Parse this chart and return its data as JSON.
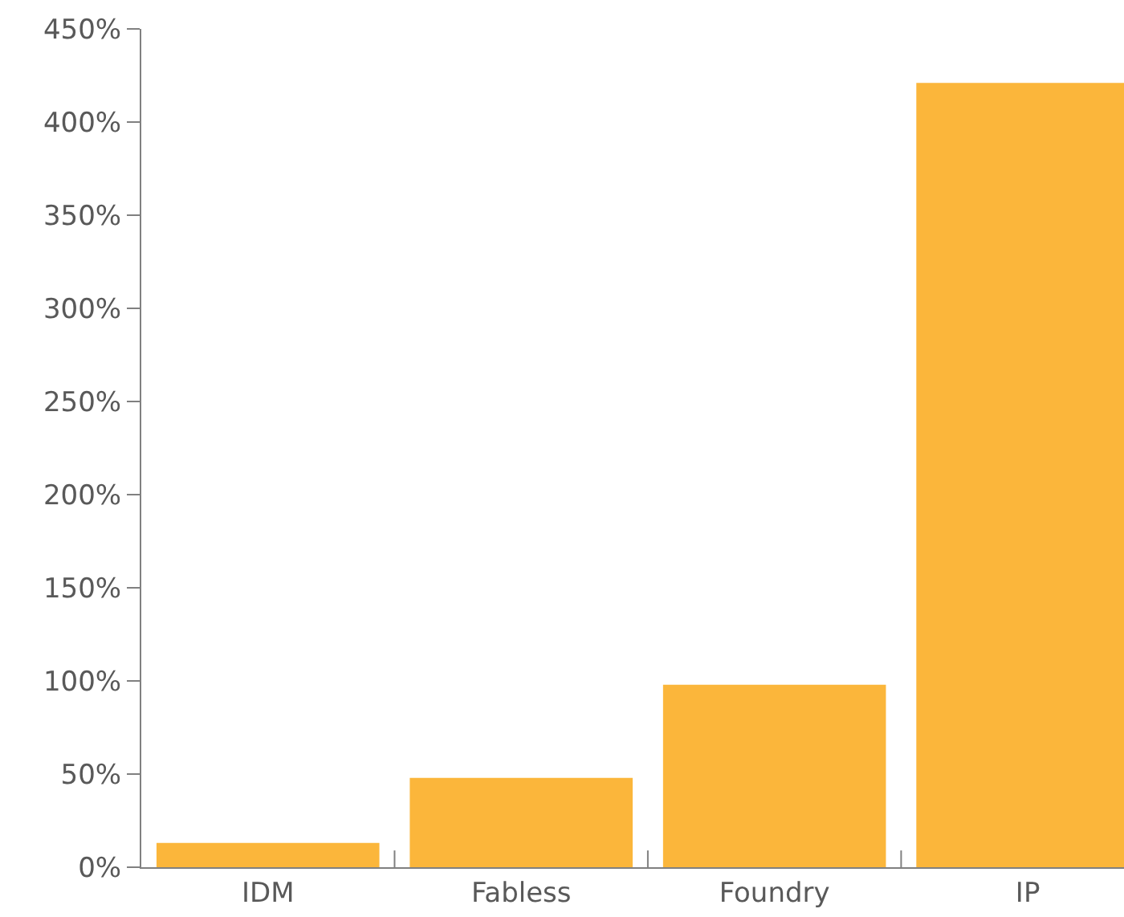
{
  "chart_data": {
    "type": "bar",
    "categories": [
      "IDM",
      "Fabless",
      "Foundry",
      "IP"
    ],
    "values": [
      13,
      48,
      98,
      421
    ],
    "color": "#fbb63b",
    "ylim": [
      0,
      450
    ],
    "yticks": [
      {
        "value": 0,
        "label": "0%"
      },
      {
        "value": 50,
        "label": "50%"
      },
      {
        "value": 100,
        "label": "100%"
      },
      {
        "value": 150,
        "label": "150%"
      },
      {
        "value": 200,
        "label": "200%"
      },
      {
        "value": 250,
        "label": "250%"
      },
      {
        "value": 300,
        "label": "300%"
      },
      {
        "value": 350,
        "label": "350%"
      },
      {
        "value": 400,
        "label": "400%"
      },
      {
        "value": 450,
        "label": "450%"
      }
    ]
  }
}
